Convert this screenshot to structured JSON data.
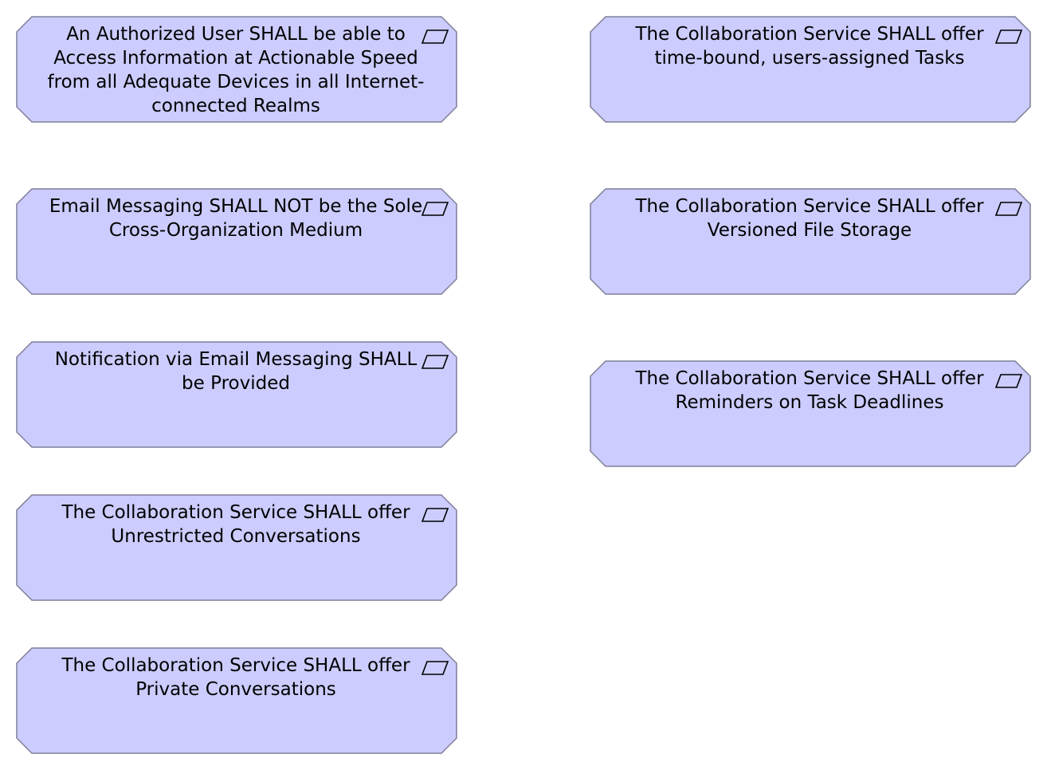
{
  "colors": {
    "fill": "#ccccff",
    "stroke": "#7f7f99",
    "text": "#000000"
  },
  "icon_name": "requirement-parallelogram-icon",
  "requirements": [
    {
      "text": "An Authorized User SHALL be able to Access Information at Actionable Speed from all Adequate Devices in all Internet-connected Realms"
    },
    {
      "text": "Email Messaging SHALL NOT be the Sole Cross-Organization Medium"
    },
    {
      "text": "Notification via Email Messaging SHALL be Provided"
    },
    {
      "text": "The Collaboration Service SHALL offer Unrestricted Conversations"
    },
    {
      "text": "The Collaboration Service SHALL offer Private Conversations"
    },
    {
      "text": "The Collaboration Service SHALL offer time-bound, users-assigned Tasks"
    },
    {
      "text": "The Collaboration Service SHALL offer Versioned File Storage"
    },
    {
      "text": "The Collaboration Service SHALL offer Reminders on Task Deadlines"
    }
  ]
}
